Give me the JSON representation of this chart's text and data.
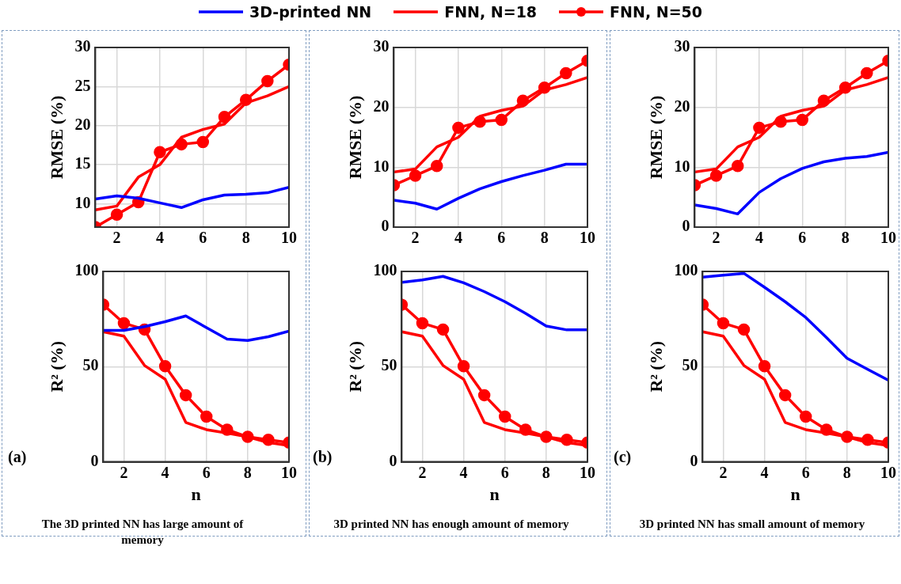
{
  "chart_data": [
    {
      "type": "line",
      "ylabel": "RMSE (%)",
      "x": [
        1,
        2,
        3,
        4,
        5,
        6,
        7,
        8,
        9,
        10
      ],
      "xlim": [
        1,
        10
      ],
      "xticks": [
        2,
        4,
        6,
        8,
        10
      ],
      "ylim": [
        7,
        30
      ],
      "yticks": [
        10,
        15,
        20,
        25,
        30
      ],
      "grid": true,
      "legend": "top",
      "series": [
        {
          "name": "3D-printed NN",
          "color": "#0000ff",
          "marker": "none",
          "values": [
            10.6,
            11.0,
            10.7,
            10.1,
            9.5,
            10.5,
            11.1,
            11.2,
            11.4,
            12.1
          ]
        },
        {
          "name": "FNN, N=18",
          "color": "#ff0000",
          "marker": "none",
          "values": [
            9.2,
            9.7,
            13.4,
            15.0,
            18.5,
            19.5,
            20.2,
            22.9,
            23.8,
            25.0
          ]
        },
        {
          "name": "FNN, N=50",
          "color": "#ff0000",
          "marker": "circle",
          "values": [
            7.0,
            8.6,
            10.2,
            16.6,
            17.6,
            17.9,
            21.1,
            23.3,
            25.7,
            27.8
          ]
        }
      ]
    },
    {
      "type": "line",
      "ylabel": "RMSE (%)",
      "x": [
        1,
        2,
        3,
        4,
        5,
        6,
        7,
        8,
        9,
        10
      ],
      "xlim": [
        1,
        10
      ],
      "xticks": [
        2,
        4,
        6,
        8,
        10
      ],
      "ylim": [
        0,
        30
      ],
      "yticks": [
        0,
        10,
        20,
        30
      ],
      "grid": true,
      "series": [
        {
          "color": "#0000ff",
          "marker": "none",
          "values": [
            4.5,
            4.0,
            3.0,
            4.8,
            6.4,
            7.6,
            8.6,
            9.5,
            10.5,
            10.5
          ]
        },
        {
          "color": "#ff0000",
          "marker": "none",
          "values": [
            9.2,
            9.7,
            13.4,
            15.0,
            18.5,
            19.5,
            20.2,
            22.9,
            23.8,
            25.0
          ]
        },
        {
          "color": "#ff0000",
          "marker": "circle",
          "values": [
            7.0,
            8.6,
            10.2,
            16.6,
            17.6,
            17.9,
            21.1,
            23.3,
            25.7,
            27.8
          ]
        }
      ]
    },
    {
      "type": "line",
      "ylabel": "RMSE (%)",
      "x": [
        1,
        2,
        3,
        4,
        5,
        6,
        7,
        8,
        9,
        10
      ],
      "xlim": [
        1,
        10
      ],
      "xticks": [
        2,
        4,
        6,
        8,
        10
      ],
      "ylim": [
        0,
        30
      ],
      "yticks": [
        0,
        10,
        20,
        30
      ],
      "grid": true,
      "series": [
        {
          "color": "#0000ff",
          "marker": "none",
          "values": [
            3.7,
            3.1,
            2.2,
            5.8,
            8.1,
            9.8,
            10.9,
            11.5,
            11.8,
            12.5
          ]
        },
        {
          "color": "#ff0000",
          "marker": "none",
          "values": [
            9.2,
            9.7,
            13.4,
            15.0,
            18.5,
            19.5,
            20.2,
            22.9,
            23.8,
            25.0
          ]
        },
        {
          "color": "#ff0000",
          "marker": "circle",
          "values": [
            7.0,
            8.6,
            10.2,
            16.6,
            17.6,
            17.9,
            21.1,
            23.3,
            25.7,
            27.8
          ]
        }
      ]
    },
    {
      "type": "line",
      "xlabel": "n",
      "ylabel": "R² (%)",
      "x": [
        1,
        2,
        3,
        4,
        5,
        6,
        7,
        8,
        9,
        10
      ],
      "xlim": [
        1,
        10
      ],
      "xticks": [
        2,
        4,
        6,
        8,
        10
      ],
      "ylim": [
        0,
        100
      ],
      "yticks": [
        0,
        50,
        100
      ],
      "grid": true,
      "annotations": [
        "(a)",
        "The 3D printed  NN has large amount of memory"
      ],
      "series": [
        {
          "color": "#0000ff",
          "marker": "none",
          "values": [
            69,
            69,
            71,
            73.6,
            76.6,
            70.5,
            64.5,
            63.7,
            65.7,
            68.6
          ]
        },
        {
          "color": "#ff0000",
          "marker": "none",
          "values": [
            68.3,
            66,
            50.6,
            43.4,
            20.7,
            16.9,
            15.1,
            13.1,
            10.1,
            8.6
          ]
        },
        {
          "color": "#ff0000",
          "marker": "circle",
          "values": [
            82.5,
            72.8,
            69.5,
            50.2,
            35,
            23.7,
            16.9,
            13.1,
            11.6,
            10.1
          ]
        }
      ]
    },
    {
      "type": "line",
      "xlabel": "n",
      "ylabel": "R² (%)",
      "x": [
        1,
        2,
        3,
        4,
        5,
        6,
        7,
        8,
        9,
        10
      ],
      "xlim": [
        1,
        10
      ],
      "xticks": [
        2,
        4,
        6,
        8,
        10
      ],
      "ylim": [
        0,
        100
      ],
      "yticks": [
        0,
        50,
        100
      ],
      "grid": true,
      "annotations": [
        "(b)",
        "3D printed  NN has enough amount of memory"
      ],
      "series": [
        {
          "color": "#0000ff",
          "marker": "none",
          "values": [
            94.3,
            95.5,
            97.4,
            94,
            89.4,
            84.1,
            78,
            71.3,
            69.3,
            69.3
          ]
        },
        {
          "color": "#ff0000",
          "marker": "none",
          "values": [
            68.3,
            66,
            50.6,
            43.4,
            20.7,
            16.9,
            15.1,
            13.1,
            10.1,
            8.6
          ]
        },
        {
          "color": "#ff0000",
          "marker": "circle",
          "values": [
            82.5,
            72.8,
            69.5,
            50.2,
            35,
            23.7,
            16.9,
            13.1,
            11.6,
            10.1
          ]
        }
      ]
    },
    {
      "type": "line",
      "xlabel": "n",
      "ylabel": "R² (%)",
      "x": [
        1,
        2,
        3,
        4,
        5,
        6,
        7,
        8,
        9,
        10
      ],
      "xlim": [
        1,
        10
      ],
      "xticks": [
        2,
        4,
        6,
        8,
        10
      ],
      "ylim": [
        0,
        100
      ],
      "yticks": [
        0,
        50,
        100
      ],
      "grid": true,
      "annotations": [
        "(c)",
        "3D printed  NN has small amount of memory"
      ],
      "series": [
        {
          "color": "#0000ff",
          "marker": "none",
          "values": [
            97,
            98,
            99,
            91.7,
            84.1,
            75.8,
            65.3,
            54.4,
            48.6,
            42.9
          ]
        },
        {
          "color": "#ff0000",
          "marker": "none",
          "values": [
            68.3,
            66,
            50.6,
            43.4,
            20.7,
            16.9,
            15.1,
            13.1,
            10.1,
            8.6
          ]
        },
        {
          "color": "#ff0000",
          "marker": "circle",
          "values": [
            82.5,
            72.8,
            69.5,
            50.2,
            35,
            23.7,
            16.9,
            13.1,
            11.6,
            10.1
          ]
        }
      ]
    }
  ]
}
